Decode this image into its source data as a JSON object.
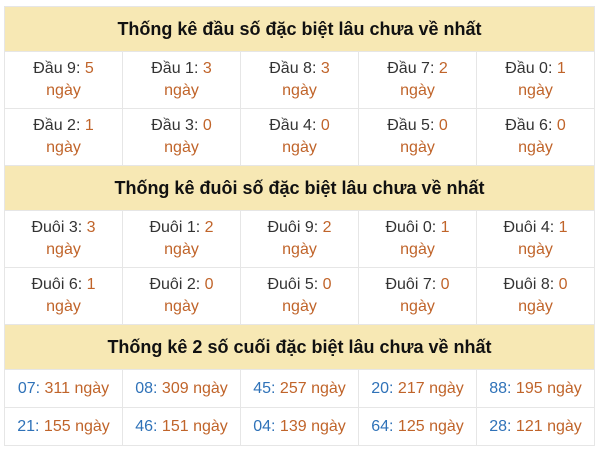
{
  "colors": {
    "header_bg": "#f7e8b4",
    "value": "#c0642a",
    "key": "#2f72b8"
  },
  "sections": [
    {
      "title": "Thống kê đầu số đặc biệt lâu chưa về nhất",
      "type": "two-line",
      "cells": [
        {
          "label": "Đầu 9: ",
          "value": "5",
          "unit": "ngày"
        },
        {
          "label": "Đầu 1: ",
          "value": "3",
          "unit": "ngày"
        },
        {
          "label": "Đầu 8: ",
          "value": "3",
          "unit": "ngày"
        },
        {
          "label": "Đầu 7: ",
          "value": "2",
          "unit": "ngày"
        },
        {
          "label": "Đầu 0: ",
          "value": "1",
          "unit": "ngày"
        },
        {
          "label": "Đầu 2: ",
          "value": "1",
          "unit": "ngày"
        },
        {
          "label": "Đầu 3: ",
          "value": "0",
          "unit": "ngày"
        },
        {
          "label": "Đầu 4: ",
          "value": "0",
          "unit": "ngày"
        },
        {
          "label": "Đầu 5: ",
          "value": "0",
          "unit": "ngày"
        },
        {
          "label": "Đầu 6: ",
          "value": "0",
          "unit": "ngày"
        }
      ]
    },
    {
      "title": "Thống kê đuôi số đặc biệt lâu chưa về nhất",
      "type": "two-line",
      "cells": [
        {
          "label": "Đuôi 3: ",
          "value": "3",
          "unit": "ngày"
        },
        {
          "label": "Đuôi 1: ",
          "value": "2",
          "unit": "ngày"
        },
        {
          "label": "Đuôi 9: ",
          "value": "2",
          "unit": "ngày"
        },
        {
          "label": "Đuôi 0: ",
          "value": "1",
          "unit": "ngày"
        },
        {
          "label": "Đuôi 4: ",
          "value": "1",
          "unit": "ngày"
        },
        {
          "label": "Đuôi 6: ",
          "value": "1",
          "unit": "ngày"
        },
        {
          "label": "Đuôi 2: ",
          "value": "0",
          "unit": "ngày"
        },
        {
          "label": "Đuôi 5: ",
          "value": "0",
          "unit": "ngày"
        },
        {
          "label": "Đuôi 7: ",
          "value": "0",
          "unit": "ngày"
        },
        {
          "label": "Đuôi 8: ",
          "value": "0",
          "unit": "ngày"
        }
      ]
    },
    {
      "title": "Thống kê 2 số cuối đặc biệt lâu chưa về nhất",
      "type": "one-line",
      "cells": [
        {
          "label": "07",
          "value": "311 ngày"
        },
        {
          "label": "08",
          "value": "309 ngày"
        },
        {
          "label": "45",
          "value": "257 ngày"
        },
        {
          "label": "20",
          "value": "217 ngày"
        },
        {
          "label": "88",
          "value": "195 ngày"
        },
        {
          "label": "21",
          "value": "155 ngày"
        },
        {
          "label": "46",
          "value": "151 ngày"
        },
        {
          "label": "04",
          "value": "139 ngày"
        },
        {
          "label": "64",
          "value": "125 ngày"
        },
        {
          "label": "28",
          "value": "121 ngày"
        }
      ]
    }
  ]
}
